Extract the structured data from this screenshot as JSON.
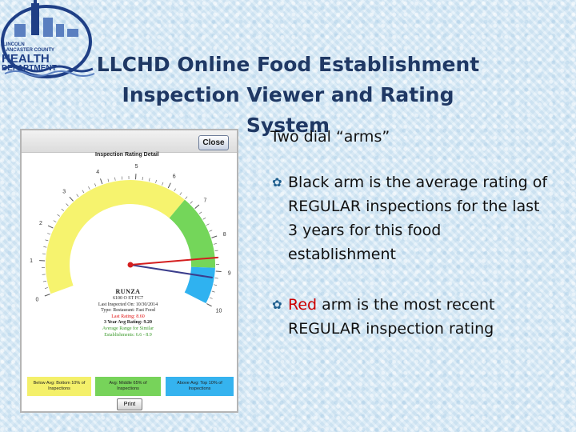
{
  "logo": {
    "line1": "LINCOLN",
    "line2": "LANCASTER COUNTY",
    "line3": "HEALTH",
    "line4": "DEPARTMENT"
  },
  "slide": {
    "title_line1": "LLCHD Online Food Establishment",
    "title_line2": "Inspection Viewer and Rating System"
  },
  "panel": {
    "close_label": "Close",
    "heading": "Inspection Rating Detail",
    "gauge": {
      "min": 0,
      "max": 10,
      "tick_labels": [
        "0",
        "1",
        "2",
        "3",
        "4",
        "5",
        "6",
        "7",
        "8",
        "9",
        "10"
      ],
      "bands": [
        {
          "from": 0,
          "to": 6.6,
          "color": "#f6f36e"
        },
        {
          "from": 6.6,
          "to": 8.9,
          "color": "#74d65a"
        },
        {
          "from": 8.9,
          "to": 10,
          "color": "#2fb2f0"
        }
      ],
      "last_rating_value": 8.6,
      "average_value": 9.2,
      "last_arm_color": "#d41f1f",
      "average_arm_color": "#3b3d8c"
    },
    "info": {
      "name": "RUNZA",
      "address": "6100 O ST FC7",
      "last_inspected": "Last Inspected On: 10/30/2014",
      "type": "Type: Restaurant: Fast Food",
      "last_rating": "Last Rating: 8.60",
      "three_year_avg": "3 Year Avg Rating: 9.20",
      "avg_range_line1": "Average Range for Similar",
      "avg_range_line2": "Establishments: 6.6 - 8.9"
    },
    "legend": {
      "below": "Below Avg: Bottom 10% of Inspections",
      "middle": "Avg: Middle 65% of Inspections",
      "above": "Above Avg: Top 10% of Inspections"
    },
    "print_label": "Print"
  },
  "bullets": {
    "intro": "Two dial “arms”",
    "item1": "Black arm is the average rating of REGULAR inspections for the last 3 years for this food establishment",
    "item2_highlight": "Red",
    "item2_rest": " arm is the most recent REGULAR inspection rating"
  }
}
